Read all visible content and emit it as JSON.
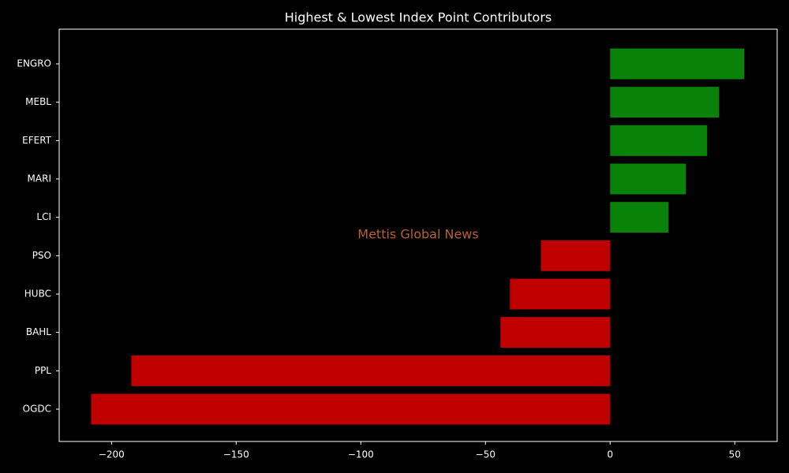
{
  "chart_data": {
    "type": "barh",
    "title": "Highest & Lowest Index Point Contributors",
    "annotation": "Mettis Global News",
    "categories": [
      "ENGRO",
      "MEBL",
      "EFERT",
      "MARI",
      "LCI",
      "PSO",
      "HUBC",
      "BAHL",
      "PPL",
      "OGDC"
    ],
    "values": [
      53.8,
      43.7,
      38.9,
      30.4,
      23.4,
      -27.8,
      -40.2,
      -44.0,
      -192.1,
      -208.2
    ],
    "colors": [
      "#088208",
      "#088208",
      "#088208",
      "#088208",
      "#088208",
      "#c00000",
      "#c00000",
      "#c00000",
      "#c00000",
      "#c00000"
    ],
    "xlim": [
      -221,
      67
    ],
    "xticks": [
      {
        "value": -200,
        "label": "−200"
      },
      {
        "value": -150,
        "label": "−150"
      },
      {
        "value": -100,
        "label": "−100"
      },
      {
        "value": -50,
        "label": "−50"
      },
      0,
      50
    ],
    "grid": false
  }
}
